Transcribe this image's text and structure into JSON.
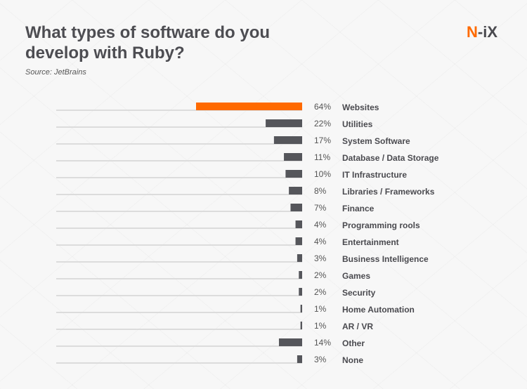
{
  "title": "What types of software do you develop with Ruby?",
  "source": "Source: JetBrains",
  "logo": {
    "n": "N",
    "rest": "-iX"
  },
  "colors": {
    "highlight": "#ff6a00",
    "bar": "#55565b",
    "track": "#dcdcdc",
    "text": "#4a4a4f"
  },
  "chart_data": {
    "type": "bar",
    "orientation": "horizontal",
    "title": "What types of software do you develop with Ruby?",
    "categories": [
      "Websites",
      "Utilities",
      "System Software",
      "Database / Data Storage",
      "IT Infrastructure",
      "Libraries / Frameworks",
      "Finance",
      "Programming rools",
      "Entertainment",
      "Business Intelligence",
      "Games",
      "Security",
      "Home Automation",
      "AR / VR",
      "Other",
      "None"
    ],
    "values": [
      64,
      22,
      17,
      11,
      10,
      8,
      7,
      4,
      4,
      3,
      2,
      2,
      1,
      1,
      14,
      3
    ],
    "data_labels": [
      "64%",
      "22%",
      "17%",
      "11%",
      "10%",
      "8%",
      "7%",
      "4%",
      "4%",
      "3%",
      "2%",
      "2%",
      "1%",
      "1%",
      "14%",
      "3%"
    ],
    "unit": "%",
    "highlighted": "Websites",
    "grid": false
  }
}
